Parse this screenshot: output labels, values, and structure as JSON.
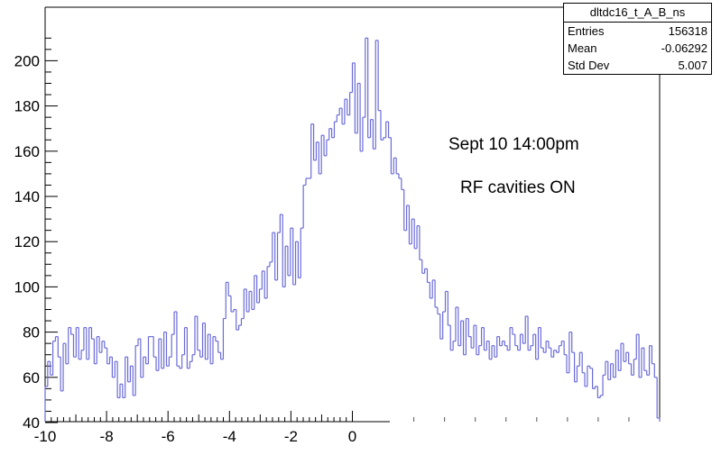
{
  "chart_data": {
    "type": "histogram",
    "title": "",
    "xlabel": "",
    "ylabel": "",
    "xlim": [
      -10,
      10
    ],
    "ylim": [
      40,
      215
    ],
    "grid": false,
    "line_color": "#6b6bd8",
    "xticks": [
      -10,
      -8,
      -6,
      -4,
      -2,
      0
    ],
    "yticks": [
      40,
      60,
      80,
      100,
      120,
      140,
      160,
      180,
      200
    ],
    "bin_width": 0.1,
    "bins_start": -10.0,
    "values": [
      56,
      67,
      61,
      76,
      78,
      69,
      54,
      75,
      66,
      82,
      79,
      69,
      82,
      68,
      72,
      82,
      68,
      82,
      77,
      66,
      78,
      71,
      76,
      73,
      66,
      69,
      60,
      67,
      51,
      57,
      51,
      69,
      58,
      65,
      52,
      74,
      77,
      60,
      69,
      66,
      78,
      78,
      69,
      63,
      77,
      64,
      80,
      65,
      69,
      79,
      89,
      65,
      64,
      70,
      82,
      64,
      67,
      70,
      87,
      72,
      69,
      84,
      68,
      79,
      66,
      78,
      76,
      71,
      68,
      86,
      102,
      96,
      89,
      90,
      81,
      83,
      86,
      99,
      89,
      98,
      90,
      105,
      93,
      99,
      107,
      95,
      109,
      111,
      124,
      103,
      124,
      132,
      100,
      118,
      105,
      126,
      101,
      120,
      104,
      126,
      145,
      148,
      148,
      172,
      156,
      164,
      150,
      167,
      158,
      165,
      170,
      166,
      173,
      176,
      179,
      172,
      183,
      176,
      186,
      199,
      168,
      190,
      160,
      175,
      210,
      166,
      174,
      161,
      209,
      178,
      165,
      166,
      173,
      166,
      150,
      157,
      150,
      148,
      143,
      125,
      136,
      119,
      130,
      117,
      127,
      112,
      106,
      108,
      102,
      95,
      103,
      91,
      88,
      77,
      89,
      98,
      83,
      72,
      76,
      91,
      74,
      85,
      70,
      86,
      78,
      73,
      83,
      70,
      74,
      82,
      72,
      76,
      68,
      74,
      69,
      78,
      74,
      76,
      74,
      72,
      82,
      79,
      74,
      72,
      79,
      75,
      87,
      72,
      74,
      79,
      68,
      82,
      73,
      71,
      76,
      73,
      69,
      72,
      71,
      74,
      76,
      70,
      62,
      80,
      71,
      58,
      65,
      71,
      62,
      56,
      65,
      64,
      55,
      56,
      51,
      52,
      61,
      67,
      59,
      66,
      60,
      72,
      63,
      75,
      67,
      71,
      66,
      61,
      68,
      79,
      60,
      73,
      63,
      61,
      74,
      66,
      60,
      42
    ]
  },
  "stats": {
    "title": "dltdc16_t_A_B_ns",
    "rows": [
      {
        "label": "Entries",
        "value": "156318"
      },
      {
        "label": "Mean",
        "value": "-0.06292"
      },
      {
        "label": "Std Dev",
        "value": "5.007"
      }
    ]
  },
  "annotations": {
    "line1": "Sept 10 14:00pm",
    "line2": "RF cavities ON"
  }
}
